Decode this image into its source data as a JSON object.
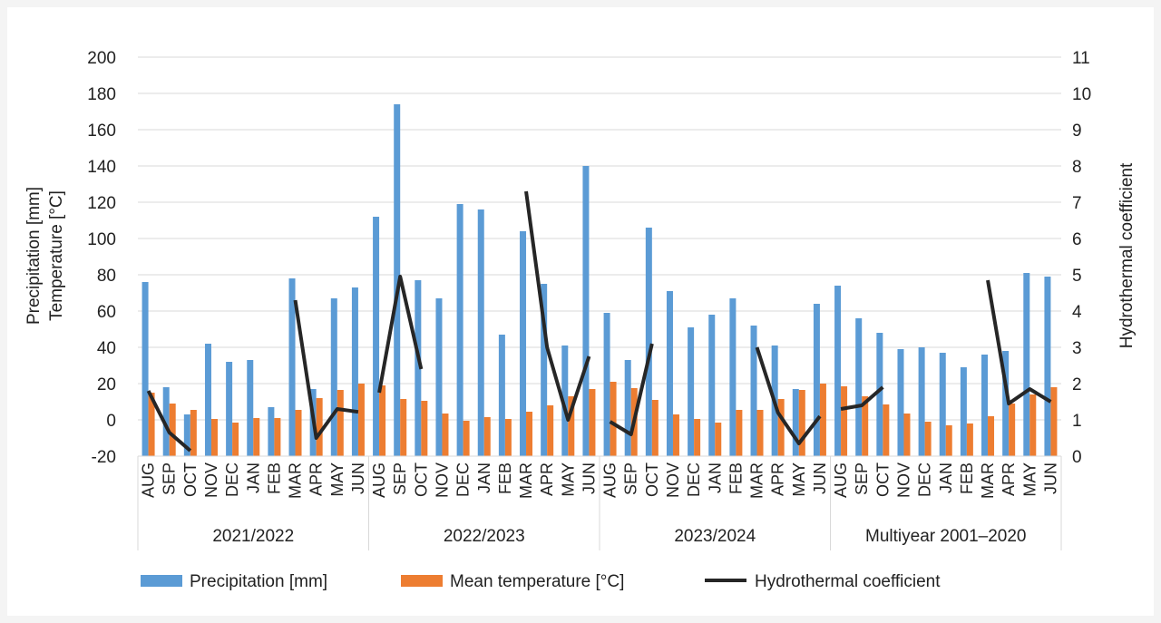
{
  "chart_data": {
    "type": "bar",
    "title": "",
    "ylabel": [
      "Precipitation [mm]",
      "Temperature [°C]"
    ],
    "y2label": "Hydrothermal coefficient",
    "ylim": [
      -20,
      200
    ],
    "yticks": [
      -20,
      0,
      20,
      40,
      60,
      80,
      100,
      120,
      140,
      160,
      180,
      200
    ],
    "y2lim": [
      0,
      11
    ],
    "y2ticks": [
      0,
      1,
      2,
      3,
      4,
      5,
      6,
      7,
      8,
      9,
      10,
      11
    ],
    "grid": true,
    "legend_position": "bottom",
    "groups": [
      "2021/2022",
      "2022/2023",
      "2023/2024",
      "Multiyear 2001–2020"
    ],
    "months": [
      "AUG",
      "SEP",
      "OCT",
      "NOV",
      "DEC",
      "JAN",
      "FEB",
      "MAR",
      "APR",
      "MAY",
      "JUN"
    ],
    "series": [
      {
        "name": "Precipitation [mm]",
        "type": "bar",
        "axis": "left",
        "color": "#5b9bd5",
        "values": [
          [
            76,
            18,
            3,
            42,
            32,
            33,
            7,
            78,
            17,
            67,
            73
          ],
          [
            112,
            174,
            77,
            67,
            119,
            116,
            47,
            104,
            75,
            41,
            140
          ],
          [
            59,
            33,
            106,
            71,
            51,
            58,
            67,
            52,
            41,
            17,
            64
          ],
          [
            74,
            56,
            48,
            39,
            40,
            37,
            29,
            36,
            38,
            81,
            79
          ]
        ]
      },
      {
        "name": "Mean temperature [°C]",
        "type": "bar",
        "axis": "left",
        "color": "#ed7d31",
        "values": [
          [
            15,
            9,
            5.5,
            0.5,
            -1.5,
            1,
            1,
            5.5,
            12,
            16.5,
            20
          ],
          [
            19,
            11.5,
            10.5,
            3.5,
            -0.5,
            1.5,
            0.5,
            4.5,
            8,
            13,
            17
          ],
          [
            21,
            17.5,
            11,
            3,
            0.5,
            -1.5,
            5.5,
            5.5,
            11.5,
            16.5,
            20
          ],
          [
            18.5,
            13,
            8.5,
            3.5,
            -1,
            -3,
            -2,
            2,
            9,
            14,
            18
          ]
        ]
      },
      {
        "name": "Hydrothermal coefficient",
        "type": "line",
        "axis": "right",
        "color": "#262626",
        "values": [
          [
            1.8,
            0.65,
            0.15,
            null,
            null,
            null,
            null,
            4.3,
            0.5,
            1.3,
            1.22
          ],
          [
            1.75,
            4.95,
            2.4,
            null,
            null,
            null,
            null,
            7.3,
            3.0,
            1.0,
            2.75
          ],
          [
            0.95,
            0.6,
            3.1,
            null,
            null,
            null,
            null,
            3.0,
            1.2,
            0.35,
            1.1
          ],
          [
            1.3,
            1.4,
            1.9,
            null,
            null,
            null,
            null,
            4.85,
            1.45,
            1.85,
            1.5
          ]
        ]
      }
    ]
  }
}
